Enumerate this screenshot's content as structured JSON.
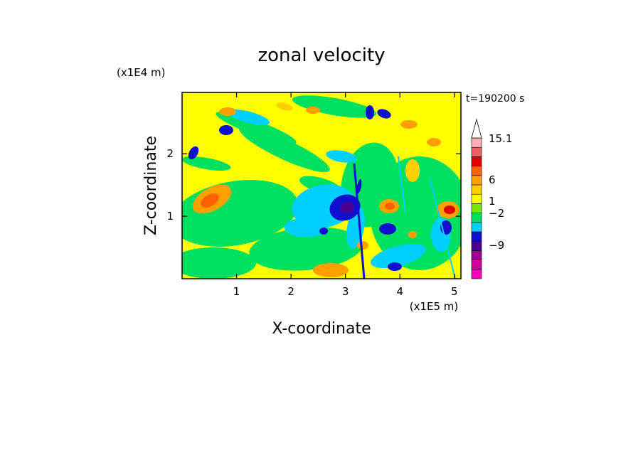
{
  "chart_data": {
    "type": "heatmap",
    "title": "zonal velocity",
    "xlabel": "X-coordinate",
    "ylabel": "Z-coordinate",
    "x_unit": "(x1E5 m)",
    "y_unit": "(x1E4 m)",
    "time_label": "t=190200 s",
    "xlim": [
      0,
      5.12
    ],
    "ylim": [
      0,
      2.98
    ],
    "x_ticks": [
      1,
      2,
      3,
      4,
      5
    ],
    "y_ticks": [
      1,
      2
    ],
    "colorbar": {
      "colors": [
        "#ff00bb",
        "#d0009a",
        "#9b0096",
        "#4b0094",
        "#0f0fd0",
        "#00d0ff",
        "#00e060",
        "#70e800",
        "#ffff00",
        "#ffd000",
        "#ffa000",
        "#ff6000",
        "#e00000",
        "#f06060",
        "#ffb0b0",
        "#ffffff"
      ],
      "labels": [
        "15.1",
        "6",
        "1",
        "−2",
        "−9"
      ],
      "label_levels": [
        15.1,
        6,
        1,
        -2,
        -9
      ],
      "min": -15,
      "max": 15.1
    },
    "field_note": ""
  }
}
